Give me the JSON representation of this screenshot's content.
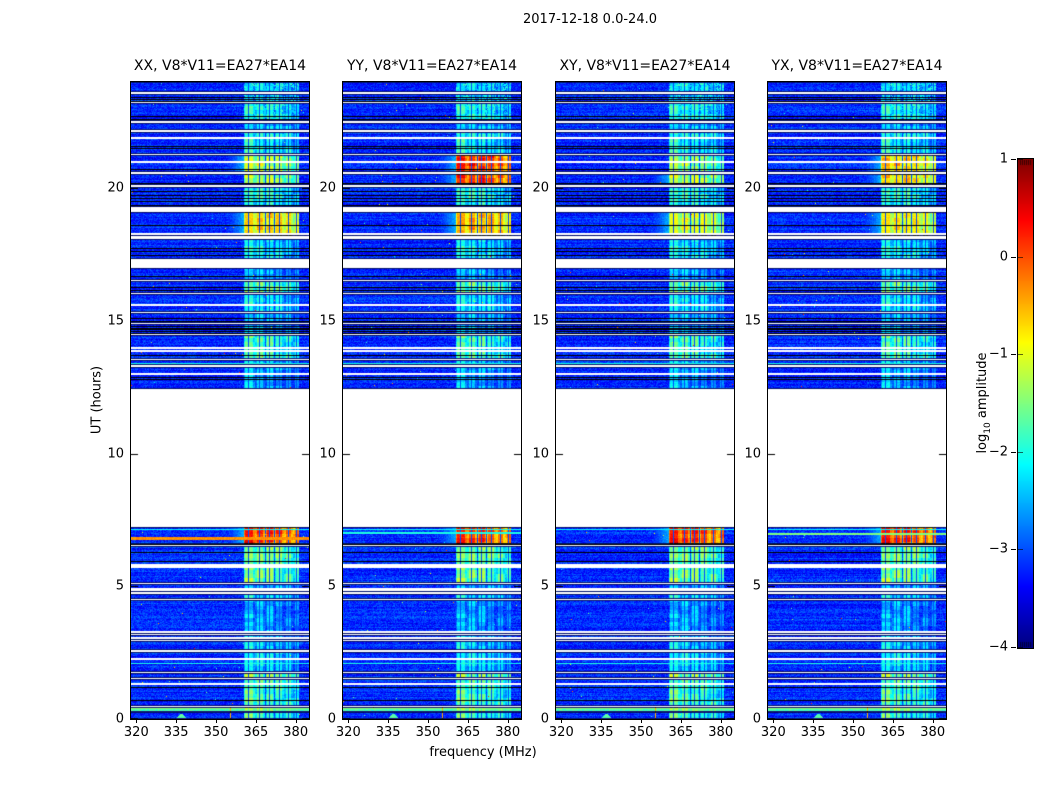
{
  "chart_data": {
    "type": "heatmap",
    "title": "2017-12-18 0.0-24.0",
    "xlabel": "frequency (MHz)",
    "ylabel": "UT (hours)",
    "x_range": [
      318,
      385
    ],
    "y_range": [
      0,
      24
    ],
    "x_ticks": [
      320,
      335,
      350,
      365,
      380
    ],
    "x_tick_labels": [
      "320",
      "335",
      "350",
      "365",
      "380"
    ],
    "y_ticks": [
      0,
      5,
      10,
      15,
      20
    ],
    "y_tick_labels": [
      "0",
      "5",
      "10",
      "15",
      "20"
    ],
    "colorbar": {
      "label": "log10 amplitude",
      "label_prefix": "log",
      "label_sub": "10",
      "label_suffix": " amplitude",
      "colormap": "jet",
      "range": [
        -4,
        1
      ],
      "ticks": [
        1,
        0,
        -1,
        -2,
        -3,
        -4
      ],
      "tick_labels": [
        "1",
        "0",
        "−1",
        "−2",
        "−3",
        "−4"
      ]
    },
    "panels": [
      {
        "title": "XX, V8*V11=EA27*EA14",
        "levels": {
          "hot1": -1.0,
          "hot1b": -1.1,
          "hot2": -0.55,
          "event_col": 0.3
        },
        "event_stripe": {
          "t": 6.86,
          "v": -0.35,
          "h": 3
        },
        "cyan_row_t": 7.14
      },
      {
        "title": "YY, V8*V11=EA27*EA14",
        "levels": {
          "hot1": 0.35,
          "hot1b": 0.3,
          "hot2": -0.35,
          "event_col": 0.25
        },
        "event_stripe": {
          "t": 7.06,
          "v": -2.0,
          "h": 2
        },
        "cyan_row_t": 7.14
      },
      {
        "title": "XY, V8*V11=EA27*EA14",
        "levels": {
          "hot1": -1.2,
          "hot1b": -1.0,
          "hot2": -0.9,
          "event_col": 0.3
        },
        "event_stripe": null,
        "cyan_row_t": 7.14
      },
      {
        "title": "YX, V8*V11=EA27*EA14",
        "levels": {
          "hot1": -0.45,
          "hot1b": -0.5,
          "hot2": -0.7,
          "event_col": 0.3
        },
        "event_stripe": {
          "t": 6.99,
          "v": -1.5,
          "h": 2
        },
        "cyan_row_t": 7.14
      }
    ],
    "data_gap_hours": [
      7.25,
      12.42
    ],
    "rfi_band": {
      "f0": 360.6,
      "f1": 381.4,
      "columns": [
        [
          360.8,
          364.2
        ],
        [
          365.2,
          368.0
        ],
        [
          369.0,
          371.6
        ],
        [
          372.6,
          375.1
        ],
        [
          376.1,
          378.5
        ],
        [
          379.5,
          381.2
        ]
      ],
      "dark_lines_mhz": [
        362.2,
        366.3,
        370.1,
        373.8,
        377.4,
        380.2
      ]
    },
    "narrow_rfi_line_mhz": 355.6,
    "bump_mhz": 337.0,
    "scans": [
      {
        "t0": 23.62,
        "t1": 24.0,
        "rfi": -2.1,
        "patchy": true
      },
      {
        "t0": 23.25,
        "t1": 23.55,
        "rfi": -2.3,
        "patchy": true,
        "blacks": [
          23.3,
          23.37,
          23.44
        ]
      },
      {
        "t0": 22.52,
        "t1": 23.2,
        "rfi": -1.9,
        "patchy": true,
        "blacks": [
          22.62,
          22.72
        ]
      },
      {
        "t0": 22.18,
        "t1": 22.45,
        "rfi": -2.2
      },
      {
        "t0": 21.3,
        "t1": 22.12,
        "rfi": -1.85,
        "blacks": [
          21.52,
          21.6
        ],
        "whites": [
          21.93
        ]
      },
      {
        "t0": 20.62,
        "t1": 21.25,
        "rfi": "hot1",
        "blacks": [
          20.72
        ],
        "whites": [
          21.02
        ]
      },
      {
        "t0": 20.12,
        "t1": 20.55,
        "rfi": "hot1b",
        "blacks": [
          20.2
        ]
      },
      {
        "t0": 19.28,
        "t1": 20.05,
        "rfi": -1.8,
        "blacks": [
          19.38,
          19.5,
          19.62,
          19.75,
          19.88
        ]
      },
      {
        "t0": 18.18,
        "t1": 19.12,
        "rfi": "hot2",
        "blacks": [
          18.6
        ],
        "whites": [
          18.3
        ]
      },
      {
        "t0": 17.35,
        "t1": 18.1,
        "rfi": -2.0,
        "blacks": [
          17.5,
          17.62,
          17.75
        ]
      },
      {
        "t0": 16.55,
        "t1": 17.0,
        "rfi": -2.3,
        "blacks": [
          16.7
        ]
      },
      {
        "t0": 16.05,
        "t1": 16.5,
        "rfi": -1.45,
        "blacks": [
          16.15,
          16.28
        ]
      },
      {
        "t0": 15.35,
        "t1": 16.0,
        "rfi": -2.0,
        "whites": [
          15.62
        ]
      },
      {
        "t0": 14.92,
        "t1": 15.28,
        "rfi": -2.2,
        "blacks": [
          15.0,
          15.1
        ]
      },
      {
        "t0": 14.52,
        "t1": 14.88,
        "rfi": -2.4,
        "blacks": [
          14.56,
          14.62,
          14.68,
          14.74,
          14.8
        ]
      },
      {
        "t0": 13.56,
        "t1": 14.48,
        "rfi": -1.6,
        "whites": [
          14.02,
          13.92
        ],
        "blacks": [
          13.7
        ]
      },
      {
        "t0": 13.32,
        "t1": 13.52,
        "rfi": -2.2,
        "cyan_row": 13.42
      },
      {
        "t0": 12.42,
        "t1": 13.28,
        "rfi": -2.3,
        "blacks": [
          12.8,
          12.9
        ],
        "whites": [
          13.05
        ]
      },
      {
        "t0": 6.58,
        "t1": 7.25,
        "rfi": "event_col",
        "event": true,
        "blacks": [
          6.6
        ]
      },
      {
        "t0": 5.12,
        "t1": 6.52,
        "rfi": -1.35,
        "blacks": [
          6.3,
          5.95
        ],
        "whites": [
          5.85,
          5.78
        ]
      },
      {
        "t0": 4.78,
        "t1": 5.08,
        "rfi": -2.3,
        "whites": [
          4.95,
          4.88
        ]
      },
      {
        "t0": 4.52,
        "t1": 4.72,
        "rfi": -2.0
      },
      {
        "t0": 3.2,
        "t1": 4.48,
        "rfi": -2.35,
        "whites": [
          3.32
        ]
      },
      {
        "t0": 2.98,
        "t1": 3.16,
        "rfi": -2.2,
        "whites": [
          3.08
        ]
      },
      {
        "t0": 2.6,
        "t1": 2.94,
        "rfi": -2.1
      },
      {
        "t0": 1.78,
        "t1": 2.52,
        "rfi": -2.0,
        "cyan_row": 2.12,
        "whites": [
          2.3
        ]
      },
      {
        "t0": 1.56,
        "t1": 1.74,
        "rfi": -1.3
      },
      {
        "t0": 0.5,
        "t1": 1.52,
        "rfi": -1.55,
        "blacks": [
          0.72,
          1.2
        ],
        "whites": [
          1.35
        ]
      },
      {
        "t0": 0.28,
        "t1": 0.46,
        "rfi": -1.3,
        "green_band": true
      },
      {
        "t0": 0.0,
        "t1": 0.26,
        "rfi": -1.6,
        "bottom": true
      }
    ]
  }
}
